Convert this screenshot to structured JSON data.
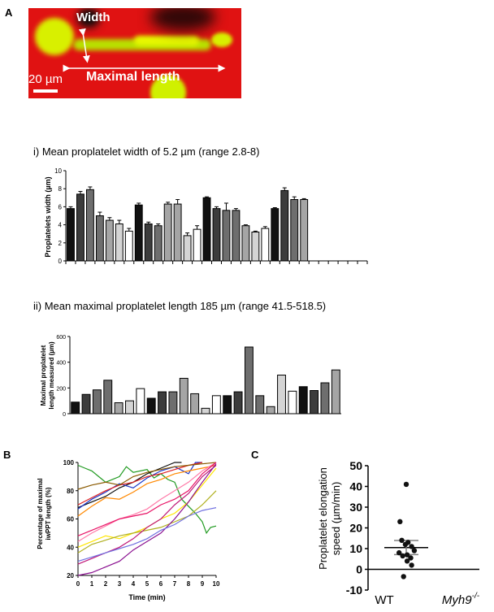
{
  "panels": {
    "a": {
      "letter": "A",
      "image_labels": {
        "width": "Width",
        "maximal_length": "Maximal length",
        "scale_bar": "20 µm"
      }
    },
    "b": {
      "letter": "B"
    },
    "c": {
      "letter": "C"
    }
  },
  "colors": {
    "micrograph_red": "#e01212",
    "micrograph_green": "#d8f000",
    "bar_black": "#111111",
    "bar_dark": "#3c3c3c",
    "bar_mid": "#6e6e6e",
    "bar_light": "#a5a5a5",
    "bar_pale": "#d4d4d4",
    "bar_white": "#ffffff"
  },
  "chart_data": [
    {
      "id": "width",
      "type": "bar",
      "title": "i) Mean proplatelet width of 5.2 µm (range 2.8-8)",
      "ylabel": "Proplatelets width (µm)",
      "ylim": [
        0,
        10
      ],
      "yticks": [
        0,
        2,
        4,
        6,
        8,
        10
      ],
      "n_slots": 31,
      "values": [
        5.8,
        7.4,
        7.9,
        5.0,
        4.5,
        4.1,
        3.3,
        6.2,
        4.1,
        3.9,
        6.3,
        6.3,
        2.8,
        3.5,
        7.0,
        5.8,
        5.6,
        5.6,
        3.9,
        3.2,
        3.6,
        5.8,
        7.8,
        6.8,
        6.8
      ],
      "errors": [
        0.2,
        0.3,
        0.3,
        0.4,
        0.3,
        0.4,
        0.3,
        0.2,
        0.2,
        0.2,
        0.2,
        0.5,
        0.3,
        0.4,
        0.1,
        0.2,
        0.8,
        0.2,
        0.1,
        0.1,
        0.2,
        0.1,
        0.3,
        0.3,
        0.1
      ],
      "shades": [
        "bar_black",
        "bar_dark",
        "bar_mid",
        "bar_mid",
        "bar_light",
        "bar_pale",
        "bar_white",
        "bar_black",
        "bar_dark",
        "bar_mid",
        "bar_light",
        "bar_light",
        "bar_pale",
        "bar_white",
        "bar_black",
        "bar_dark",
        "bar_mid",
        "bar_mid",
        "bar_light",
        "bar_pale",
        "bar_white",
        "bar_black",
        "bar_dark",
        "bar_mid",
        "bar_light"
      ]
    },
    {
      "id": "length",
      "type": "bar",
      "title": "ii) Mean maximal proplatelet length 185 µm (range 41.5-518.5)",
      "ylabel_lines": [
        "Maximal proplatelet",
        "length measured (µm)"
      ],
      "ylim": [
        0,
        600
      ],
      "yticks": [
        0,
        200,
        400,
        600
      ],
      "values": [
        90,
        150,
        185,
        260,
        85,
        100,
        195,
        120,
        170,
        170,
        275,
        155,
        42,
        140,
        140,
        170,
        518,
        140,
        55,
        300,
        175,
        210,
        180,
        240,
        340
      ],
      "shades": [
        "bar_black",
        "bar_dark",
        "bar_mid",
        "bar_mid",
        "bar_light",
        "bar_pale",
        "bar_white",
        "bar_black",
        "bar_dark",
        "bar_mid",
        "bar_light",
        "bar_light",
        "bar_pale",
        "bar_white",
        "bar_black",
        "bar_dark",
        "bar_mid",
        "bar_mid",
        "bar_light",
        "bar_pale",
        "bar_white",
        "bar_black",
        "bar_dark",
        "bar_mid",
        "bar_light"
      ]
    },
    {
      "id": "time-course",
      "type": "line",
      "xlabel": "Time (min)",
      "ylabel_lines": [
        "Percentage of maximal",
        "iwPPT length (%)"
      ],
      "xlim": [
        0,
        10
      ],
      "ylim": [
        20,
        100
      ],
      "xticks": [
        0,
        1,
        2,
        3,
        4,
        5,
        6,
        7,
        8,
        9,
        10
      ],
      "yticks": [
        20,
        40,
        60,
        80,
        100
      ],
      "series": [
        {
          "color": "#1f9a1f",
          "x": [
            0,
            0.5,
            1,
            2,
            3,
            3.5,
            4,
            5,
            5.5,
            6,
            6.5,
            7,
            7.5,
            8,
            8.5,
            9,
            9.3,
            9.6,
            10
          ],
          "y": [
            98,
            96,
            94,
            86,
            90,
            97,
            93,
            95,
            89,
            92,
            88,
            86,
            74,
            69,
            64,
            58,
            50,
            54,
            55
          ]
        },
        {
          "color": "#111111",
          "x": [
            0,
            1,
            2,
            3,
            4,
            5,
            6,
            7,
            7.5
          ],
          "y": [
            68,
            72,
            76,
            82,
            86,
            92,
            96,
            100,
            100
          ]
        },
        {
          "color": "#1b36c8",
          "x": [
            0,
            1,
            2,
            3,
            4,
            5,
            6,
            7,
            8,
            8.5,
            9
          ],
          "y": [
            67,
            74,
            79,
            85,
            82,
            89,
            94,
            97,
            92,
            100,
            100
          ]
        },
        {
          "color": "#e02020",
          "x": [
            0,
            1,
            2,
            3,
            4,
            5,
            6,
            7,
            8,
            9
          ],
          "y": [
            70,
            75,
            80,
            84,
            86,
            90,
            92,
            95,
            98,
            100
          ]
        },
        {
          "color": "#ff8800",
          "x": [
            0,
            1,
            2,
            3,
            4,
            5,
            6,
            7,
            8,
            9,
            10
          ],
          "y": [
            62,
            69,
            75,
            74,
            79,
            85,
            88,
            92,
            94,
            96,
            98
          ]
        },
        {
          "color": "#8a5a00",
          "x": [
            0,
            1,
            2,
            3,
            4,
            5,
            6,
            7,
            8,
            9,
            10
          ],
          "y": [
            81,
            84,
            86,
            84,
            90,
            93,
            95,
            97,
            98,
            99,
            100
          ]
        },
        {
          "color": "#ff7aa8",
          "x": [
            0,
            1,
            2,
            3,
            4,
            5,
            6,
            7,
            8,
            9,
            10
          ],
          "y": [
            44,
            50,
            55,
            60,
            63,
            67,
            74,
            80,
            86,
            94,
            100
          ]
        },
        {
          "color": "#e81466",
          "x": [
            0,
            1,
            2,
            3,
            4,
            5,
            6,
            7,
            8,
            9,
            10
          ],
          "y": [
            48,
            52,
            56,
            60,
            62,
            64,
            70,
            74,
            80,
            92,
            100
          ]
        },
        {
          "color": "#ffe600",
          "x": [
            0,
            1,
            2,
            3,
            4,
            5,
            6,
            7,
            8,
            9,
            10
          ],
          "y": [
            40,
            44,
            48,
            46,
            50,
            54,
            60,
            64,
            72,
            84,
            96
          ]
        },
        {
          "color": "#b0b020",
          "x": [
            0,
            1,
            2,
            3,
            4,
            5,
            6,
            7,
            8,
            9,
            10
          ],
          "y": [
            36,
            42,
            45,
            48,
            50,
            52,
            54,
            58,
            62,
            70,
            80
          ]
        },
        {
          "color": "#c01878",
          "x": [
            0,
            1,
            2,
            3,
            4,
            5,
            6,
            7,
            8,
            9,
            10
          ],
          "y": [
            28,
            32,
            36,
            40,
            46,
            54,
            60,
            70,
            78,
            90,
            98
          ]
        },
        {
          "color": "#8a1090",
          "x": [
            0,
            1,
            2,
            3,
            4,
            5,
            6,
            7,
            8,
            9,
            10
          ],
          "y": [
            18,
            22,
            26,
            30,
            38,
            44,
            50,
            60,
            72,
            86,
            99
          ]
        },
        {
          "color": "#7070e0",
          "x": [
            0,
            1,
            2,
            3,
            4,
            5,
            6,
            7,
            8,
            9,
            10
          ],
          "y": [
            30,
            33,
            36,
            39,
            42,
            46,
            52,
            56,
            62,
            66,
            68
          ]
        }
      ]
    },
    {
      "id": "elongation-speed",
      "type": "scatter",
      "ylabel_lines": [
        "Proplatelet elongation",
        "speed (µm/min)"
      ],
      "ylim": [
        -10,
        50
      ],
      "yticks": [
        -10,
        0,
        10,
        20,
        30,
        40,
        50
      ],
      "categories": [
        "WT",
        "Myh9"
      ],
      "category_superscript": "-/-",
      "points": [
        41,
        23,
        14,
        13,
        12,
        11,
        9,
        8,
        7,
        6.5,
        5.5,
        4,
        2,
        -3.5
      ],
      "x_offsets": [
        0,
        -0.35,
        -0.25,
        0.1,
        -0.05,
        0.3,
        0.45,
        -0.4,
        0.05,
        -0.2,
        0.25,
        0.05,
        0.3,
        -0.15
      ],
      "mean": 10.5,
      "sem": 3.4
    }
  ]
}
